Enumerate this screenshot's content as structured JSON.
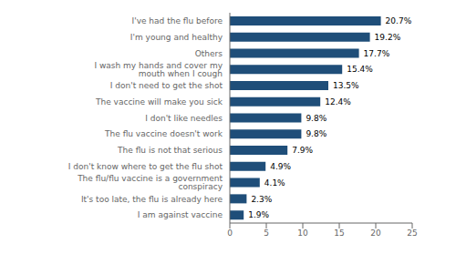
{
  "chart_data": {
    "type": "bar",
    "orientation": "horizontal",
    "categories": [
      "I am against vaccine",
      "It's too late, the flu is already here",
      "The flu/flu vaccine is a government conspiracy",
      "I don't know where to get the flu shot",
      "The flu is not that serious",
      "The flu vaccine doesn't work",
      "I don't like needles",
      "The vaccine will make you sick",
      "I don't need to get the shot",
      "I wash my hands and cover my mouth when I cough",
      "Others",
      "I'm young and healthy",
      "I've had the flu before"
    ],
    "values": [
      1.9,
      2.3,
      4.1,
      4.9,
      7.9,
      9.8,
      9.8,
      12.4,
      13.5,
      15.4,
      17.7,
      19.2,
      20.7
    ],
    "value_labels": [
      "1.9%",
      "2.3%",
      "4.1%",
      "4.9%",
      "7.9%",
      "9.8%",
      "9.8%",
      "12.4%",
      "13.5%",
      "15.4%",
      "17.7%",
      "19.2%",
      "20.7%"
    ],
    "data_labels": true,
    "color": "#1F4E79",
    "xlim": [
      0,
      25
    ],
    "xticks": [
      0,
      5,
      10,
      15,
      20,
      25
    ],
    "grid": false
  }
}
